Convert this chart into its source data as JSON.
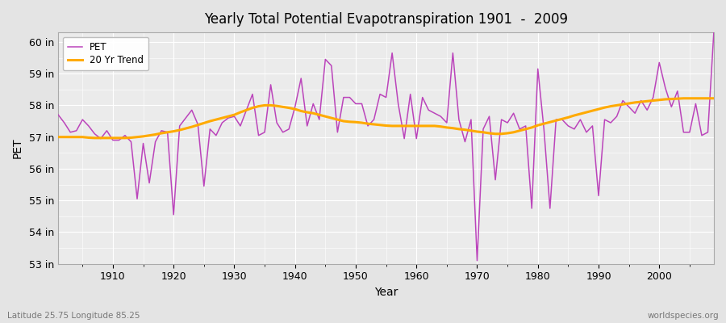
{
  "title": "Yearly Total Potential Evapotranspiration 1901  -  2009",
  "xlabel": "Year",
  "ylabel": "PET",
  "lat_text": "Latitude 25.75 Longitude 85.25",
  "source_text": "worldspecies.org",
  "bg_color": "#e4e4e4",
  "plot_bg_color": "#ebebeb",
  "grid_color": "#ffffff",
  "pet_color": "#bb44bb",
  "trend_color": "#ffaa00",
  "ylim": [
    53.0,
    60.3
  ],
  "yticks": [
    53,
    54,
    55,
    56,
    57,
    58,
    59,
    60
  ],
  "ytick_labels": [
    "53 in",
    "54 in",
    "55 in",
    "56 in",
    "57 in",
    "58 in",
    "59 in",
    "60 in"
  ],
  "years": [
    1901,
    1902,
    1903,
    1904,
    1905,
    1906,
    1907,
    1908,
    1909,
    1910,
    1911,
    1912,
    1913,
    1914,
    1915,
    1916,
    1917,
    1918,
    1919,
    1920,
    1921,
    1922,
    1923,
    1924,
    1925,
    1926,
    1927,
    1928,
    1929,
    1930,
    1931,
    1932,
    1933,
    1934,
    1935,
    1936,
    1937,
    1938,
    1939,
    1940,
    1941,
    1942,
    1943,
    1944,
    1945,
    1946,
    1947,
    1948,
    1949,
    1950,
    1951,
    1952,
    1953,
    1954,
    1955,
    1956,
    1957,
    1958,
    1959,
    1960,
    1961,
    1962,
    1963,
    1964,
    1965,
    1966,
    1967,
    1968,
    1969,
    1970,
    1971,
    1972,
    1973,
    1974,
    1975,
    1976,
    1977,
    1978,
    1979,
    1980,
    1981,
    1982,
    1983,
    1984,
    1985,
    1986,
    1987,
    1988,
    1989,
    1990,
    1991,
    1992,
    1993,
    1994,
    1995,
    1996,
    1997,
    1998,
    1999,
    2000,
    2001,
    2002,
    2003,
    2004,
    2005,
    2006,
    2007,
    2008,
    2009
  ],
  "pet": [
    57.7,
    57.45,
    57.15,
    57.2,
    57.55,
    57.35,
    57.1,
    56.95,
    57.2,
    56.9,
    56.9,
    57.05,
    56.85,
    55.05,
    56.8,
    55.55,
    56.85,
    57.2,
    57.15,
    54.55,
    57.35,
    57.6,
    57.85,
    57.4,
    55.45,
    57.25,
    57.05,
    57.45,
    57.6,
    57.65,
    57.35,
    57.85,
    58.35,
    57.05,
    57.15,
    58.65,
    57.45,
    57.15,
    57.25,
    57.95,
    58.85,
    57.35,
    58.05,
    57.55,
    59.45,
    59.25,
    57.15,
    58.25,
    58.25,
    58.05,
    58.05,
    57.35,
    57.55,
    58.35,
    58.25,
    59.65,
    58.05,
    56.95,
    58.35,
    56.95,
    58.25,
    57.85,
    57.75,
    57.65,
    57.45,
    59.65,
    57.55,
    56.85,
    57.55,
    53.1,
    57.25,
    57.65,
    55.65,
    57.55,
    57.45,
    57.75,
    57.25,
    57.35,
    54.75,
    59.15,
    57.25,
    54.75,
    57.55,
    57.55,
    57.35,
    57.25,
    57.55,
    57.15,
    57.35,
    55.15,
    57.55,
    57.45,
    57.65,
    58.15,
    57.95,
    57.75,
    58.15,
    57.85,
    58.25,
    59.35,
    58.55,
    57.95,
    58.45,
    57.15,
    57.15,
    58.05,
    57.05,
    57.15,
    60.35
  ],
  "trend": [
    57.0,
    57.0,
    57.0,
    57.0,
    57.0,
    56.98,
    56.97,
    56.97,
    56.97,
    56.97,
    56.97,
    56.97,
    56.98,
    57.0,
    57.02,
    57.05,
    57.08,
    57.12,
    57.15,
    57.18,
    57.22,
    57.27,
    57.32,
    57.38,
    57.44,
    57.5,
    57.55,
    57.6,
    57.65,
    57.7,
    57.78,
    57.85,
    57.92,
    57.97,
    58.0,
    58.0,
    57.98,
    57.95,
    57.92,
    57.88,
    57.82,
    57.78,
    57.75,
    57.7,
    57.65,
    57.6,
    57.55,
    57.5,
    57.48,
    57.47,
    57.45,
    57.42,
    57.4,
    57.38,
    57.36,
    57.35,
    57.35,
    57.35,
    57.35,
    57.35,
    57.35,
    57.35,
    57.35,
    57.33,
    57.3,
    57.28,
    57.25,
    57.23,
    57.2,
    57.17,
    57.15,
    57.12,
    57.1,
    57.1,
    57.12,
    57.15,
    57.2,
    57.25,
    57.3,
    57.37,
    57.42,
    57.47,
    57.52,
    57.57,
    57.62,
    57.68,
    57.73,
    57.78,
    57.83,
    57.88,
    57.93,
    57.97,
    58.0,
    58.03,
    58.06,
    58.09,
    58.11,
    58.13,
    58.15,
    58.17,
    58.19,
    58.2,
    58.21,
    58.22,
    58.22,
    58.22,
    58.22,
    58.22,
    58.22
  ]
}
